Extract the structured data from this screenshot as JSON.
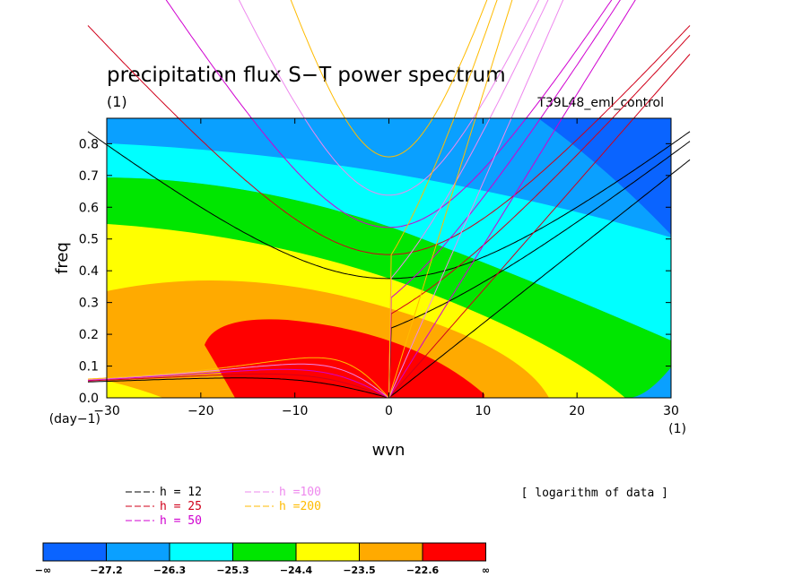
{
  "chart_data": {
    "type": "heatmap",
    "title": "precipitation flux S−T power spectrum",
    "units_left": "(1)",
    "experiment": "T39L48_eml_control",
    "xlabel": "wvn",
    "ylabel": "freq",
    "x_unit": "(1)",
    "y_unit": "(day−1)",
    "xlim": [
      -30,
      30
    ],
    "ylim": [
      0,
      0.88
    ],
    "x_ticks": [
      "−30",
      "−20",
      "−10",
      "0",
      "10",
      "20",
      "30"
    ],
    "x_tick_values": [
      -30,
      -20,
      -10,
      0,
      10,
      20,
      30
    ],
    "y_ticks": [
      "0.0",
      "0.1",
      "0.2",
      "0.3",
      "0.4",
      "0.5",
      "0.6",
      "0.7",
      "0.8"
    ],
    "y_tick_values": [
      0,
      0.1,
      0.2,
      0.3,
      0.4,
      0.5,
      0.6,
      0.7,
      0.8
    ],
    "note": "[ logarithm of data ]",
    "contour_levels": [
      -27.2,
      -26.3,
      -25.3,
      -24.4,
      -23.5,
      -22.6
    ],
    "colorbar_labels": [
      "−∞",
      "−27.2",
      "−26.3",
      "−25.3",
      "−24.4",
      "−23.5",
      "−22.6",
      "∞"
    ],
    "colorbar_colors": [
      "#0a64ff",
      "#0aa0ff",
      "#00ffff",
      "#00e600",
      "#ffff00",
      "#ffaa00",
      "#ff0000"
    ],
    "dispersion_legend": [
      {
        "label": "h = 12",
        "color": "#000000",
        "h": 12
      },
      {
        "label": "h = 25",
        "color": "#d0001a",
        "h": 25
      },
      {
        "label": "h = 50",
        "color": "#d000d0",
        "h": 50
      },
      {
        "label": "h =100",
        "color": "#ee88ee",
        "h": 100
      },
      {
        "label": "h =200",
        "color": "#ffbb00",
        "h": 200
      }
    ]
  }
}
